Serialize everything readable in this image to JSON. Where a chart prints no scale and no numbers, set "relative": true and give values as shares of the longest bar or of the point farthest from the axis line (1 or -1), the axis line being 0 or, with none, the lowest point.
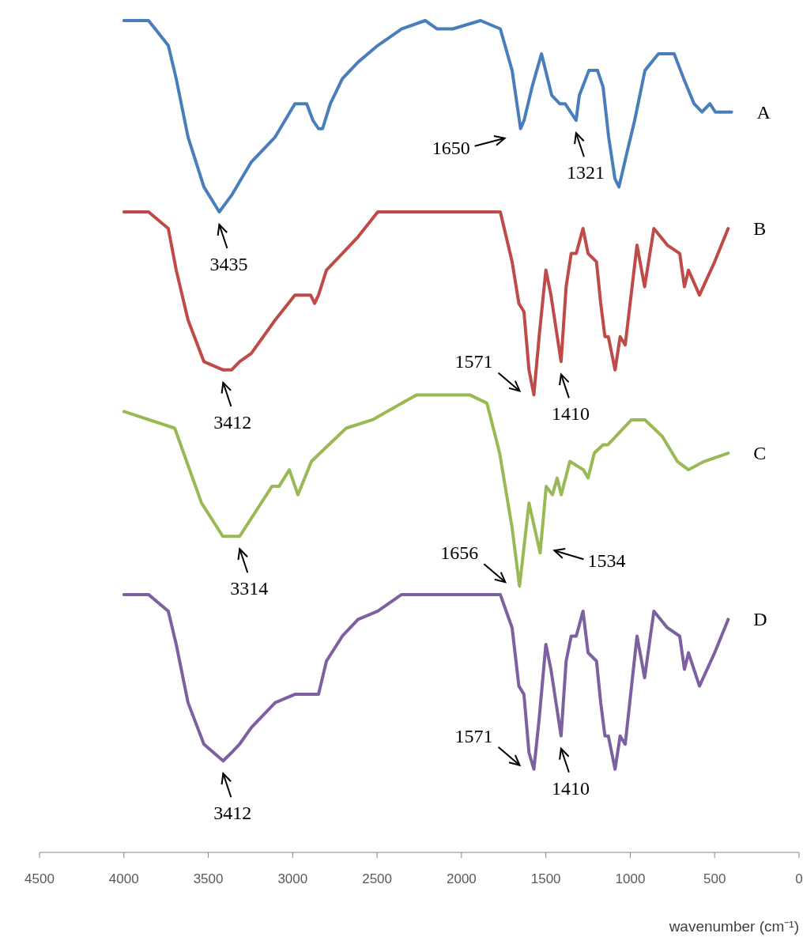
{
  "chart_data": {
    "type": "line",
    "relative": true,
    "xlabel": "wavenumber (cm⁻¹)",
    "xlim": [
      4500,
      0
    ],
    "xticks": [
      4500,
      4000,
      3500,
      3000,
      2500,
      2000,
      1500,
      1000,
      500,
      0
    ],
    "series": [
      {
        "name": "A",
        "color": "#4a7ebb",
        "x": [
          4000,
          3854,
          3737,
          3690,
          3620,
          3526,
          3435,
          3362,
          3245,
          3104,
          2987,
          2917,
          2880,
          2847,
          2823,
          2777,
          2706,
          2613,
          2496,
          2355,
          2215,
          2144,
          2051,
          1887,
          1770,
          1700,
          1650,
          1629,
          1582,
          1526,
          1465,
          1418,
          1386,
          1321,
          1302,
          1245,
          1194,
          1161,
          1128,
          1091,
          1067,
          1021,
          974,
          913,
          833,
          740,
          683,
          622,
          575,
          528,
          496,
          468,
          400
        ],
        "values": [
          1.0,
          1.0,
          0.97,
          0.93,
          0.86,
          0.8,
          0.77,
          0.79,
          0.83,
          0.86,
          0.9,
          0.9,
          0.88,
          0.87,
          0.87,
          0.9,
          0.93,
          0.95,
          0.97,
          0.99,
          1.0,
          0.99,
          0.99,
          1.0,
          0.99,
          0.94,
          0.87,
          0.88,
          0.92,
          0.96,
          0.91,
          0.9,
          0.9,
          0.88,
          0.91,
          0.94,
          0.94,
          0.92,
          0.86,
          0.81,
          0.8,
          0.84,
          0.88,
          0.94,
          0.96,
          0.96,
          0.93,
          0.9,
          0.89,
          0.9,
          0.89,
          0.89,
          0.89
        ]
      },
      {
        "name": "B",
        "color": "#be4b48",
        "x": [
          4000,
          3854,
          3737,
          3690,
          3620,
          3526,
          3412,
          3362,
          3315,
          3245,
          3104,
          2987,
          2940,
          2894,
          2870,
          2847,
          2800,
          2706,
          2613,
          2496,
          2355,
          2215,
          2144,
          2051,
          1887,
          1770,
          1700,
          1660,
          1630,
          1600,
          1571,
          1540,
          1500,
          1470,
          1410,
          1380,
          1350,
          1320,
          1280,
          1250,
          1200,
          1175,
          1150,
          1130,
          1090,
          1060,
          1030,
          960,
          915,
          860,
          780,
          707,
          679,
          655,
          590,
          500,
          420
        ],
        "values": [
          0.77,
          0.77,
          0.75,
          0.7,
          0.64,
          0.59,
          0.58,
          0.58,
          0.59,
          0.6,
          0.64,
          0.67,
          0.67,
          0.67,
          0.66,
          0.67,
          0.7,
          0.72,
          0.74,
          0.77,
          0.77,
          0.77,
          0.77,
          0.77,
          0.77,
          0.77,
          0.71,
          0.66,
          0.65,
          0.58,
          0.55,
          0.62,
          0.7,
          0.67,
          0.59,
          0.68,
          0.72,
          0.72,
          0.75,
          0.72,
          0.71,
          0.66,
          0.62,
          0.62,
          0.58,
          0.62,
          0.61,
          0.73,
          0.68,
          0.75,
          0.73,
          0.72,
          0.68,
          0.7,
          0.67,
          0.71,
          0.75
        ]
      },
      {
        "name": "C",
        "color": "#98b954",
        "x": [
          4000,
          3699,
          3540,
          3414,
          3314,
          3123,
          3081,
          3020,
          2969,
          2889,
          2838,
          2683,
          2528,
          2266,
          1952,
          1849,
          1774,
          1700,
          1656,
          1600,
          1534,
          1498,
          1461,
          1433,
          1409,
          1358,
          1278,
          1250,
          1213,
          1161,
          1133,
          993,
          913,
          810,
          721,
          655,
          562,
          420
        ],
        "values": [
          0.53,
          0.51,
          0.42,
          0.38,
          0.38,
          0.44,
          0.44,
          0.46,
          0.43,
          0.47,
          0.48,
          0.51,
          0.52,
          0.55,
          0.55,
          0.54,
          0.48,
          0.39,
          0.32,
          0.42,
          0.36,
          0.44,
          0.43,
          0.45,
          0.43,
          0.47,
          0.46,
          0.45,
          0.48,
          0.49,
          0.49,
          0.52,
          0.52,
          0.5,
          0.47,
          0.46,
          0.47,
          0.48
        ]
      },
      {
        "name": "D",
        "color": "#7d60a0",
        "x": [
          4000,
          3854,
          3737,
          3690,
          3620,
          3526,
          3412,
          3362,
          3315,
          3245,
          3104,
          2987,
          2940,
          2894,
          2870,
          2847,
          2800,
          2706,
          2613,
          2496,
          2355,
          2215,
          2144,
          2051,
          1887,
          1770,
          1700,
          1660,
          1630,
          1600,
          1571,
          1540,
          1500,
          1470,
          1410,
          1380,
          1350,
          1320,
          1280,
          1250,
          1200,
          1175,
          1150,
          1130,
          1090,
          1060,
          1030,
          960,
          915,
          860,
          780,
          707,
          679,
          655,
          590,
          500,
          420
        ],
        "values": [
          0.31,
          0.31,
          0.29,
          0.25,
          0.18,
          0.13,
          0.11,
          0.12,
          0.13,
          0.15,
          0.18,
          0.19,
          0.19,
          0.19,
          0.19,
          0.19,
          0.23,
          0.26,
          0.28,
          0.29,
          0.31,
          0.31,
          0.31,
          0.31,
          0.31,
          0.31,
          0.27,
          0.2,
          0.19,
          0.12,
          0.1,
          0.16,
          0.25,
          0.22,
          0.14,
          0.23,
          0.26,
          0.26,
          0.29,
          0.24,
          0.23,
          0.18,
          0.14,
          0.14,
          0.1,
          0.14,
          0.13,
          0.26,
          0.21,
          0.29,
          0.27,
          0.26,
          0.22,
          0.24,
          0.2,
          0.24,
          0.28
        ]
      }
    ],
    "annotations": [
      {
        "text": "3435",
        "x": 3435,
        "y": 0.77
      },
      {
        "text": "1650",
        "x": 1650,
        "y": 0.87
      },
      {
        "text": "1321",
        "x": 1321,
        "y": 0.88
      },
      {
        "text": "3412",
        "x": 3412,
        "y": 0.58
      },
      {
        "text": "1571",
        "x": 1571,
        "y": 0.55
      },
      {
        "text": "1410",
        "x": 1410,
        "y": 0.59
      },
      {
        "text": "3314",
        "x": 3314,
        "y": 0.38
      },
      {
        "text": "1656",
        "x": 1656,
        "y": 0.32
      },
      {
        "text": "1534",
        "x": 1534,
        "y": 0.36
      },
      {
        "text": "3412",
        "x": 3412,
        "y": 0.11
      },
      {
        "text": "1571",
        "x": 1571,
        "y": 0.1
      },
      {
        "text": "1410",
        "x": 1410,
        "y": 0.14
      }
    ]
  }
}
